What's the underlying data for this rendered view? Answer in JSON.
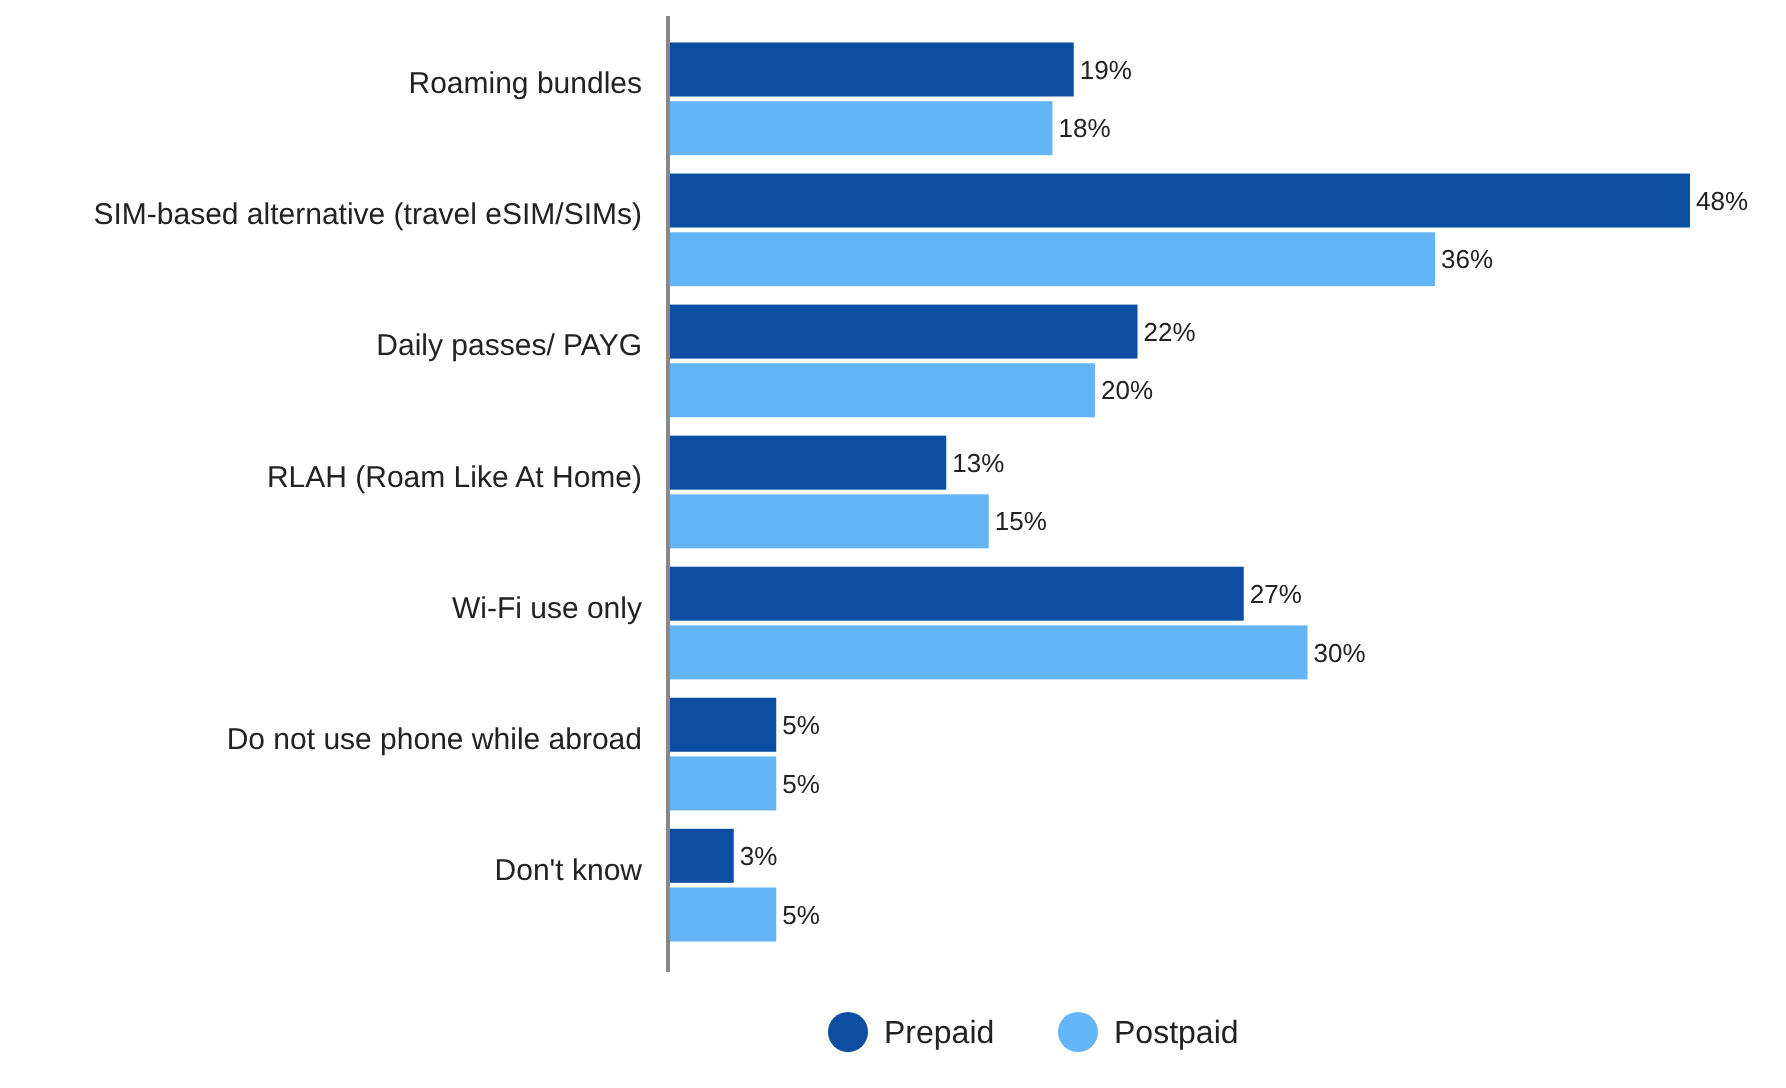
{
  "chart_data": {
    "type": "bar",
    "orientation": "horizontal",
    "categories": [
      "Roaming bundles",
      "SIM-based alternative (travel eSIM/SIMs)",
      "Daily passes/ PAYG",
      "RLAH (Roam Like At Home)",
      "Wi-Fi use only",
      "Do not use phone while abroad",
      "Don't know"
    ],
    "series": [
      {
        "name": "Prepaid",
        "color": "#0b4ea2",
        "values": [
          19,
          48,
          22,
          13,
          27,
          5,
          3
        ],
        "value_labels": [
          "19%",
          "48%",
          "22%",
          "13%",
          "27%",
          "5%",
          "3%"
        ]
      },
      {
        "name": "Postpaid",
        "color": "#64b5f6",
        "values": [
          18,
          36,
          20,
          15,
          30,
          5,
          5
        ],
        "value_labels": [
          "18%",
          "36%",
          "20%",
          "15%",
          "30%",
          "5%",
          "5%"
        ]
      }
    ],
    "legend": "bottom",
    "grid": false
  }
}
